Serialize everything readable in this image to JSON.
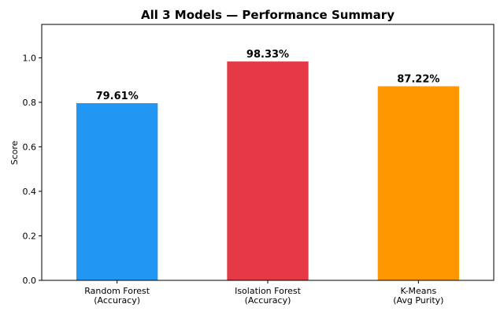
{
  "chart_data": {
    "type": "bar",
    "title": "All 3 Models — Performance Summary",
    "xlabel": "",
    "ylabel": "Score",
    "ylim": [
      0,
      1.15
    ],
    "yticks": [
      0.0,
      0.2,
      0.4,
      0.6,
      0.8,
      1.0
    ],
    "ytick_labels": [
      "0.0",
      "0.2",
      "0.4",
      "0.6",
      "0.8",
      "1.0"
    ],
    "grid": false,
    "categories": [
      [
        "Random Forest",
        "(Accuracy)"
      ],
      [
        "Isolation Forest",
        "(Accuracy)"
      ],
      [
        "K-Means",
        "(Avg Purity)"
      ]
    ],
    "values": [
      0.7961,
      0.9833,
      0.8722
    ],
    "data_labels": [
      "79.61%",
      "98.33%",
      "87.22%"
    ],
    "colors": [
      "#2196F3",
      "#E63946",
      "#FF9800"
    ]
  }
}
